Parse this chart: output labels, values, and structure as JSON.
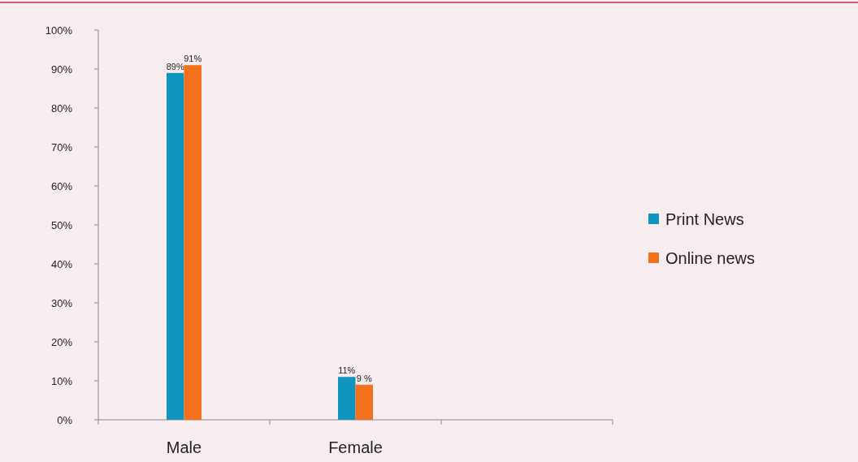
{
  "chart_data": {
    "type": "bar",
    "categories": [
      "Male",
      "Female",
      null
    ],
    "series": [
      {
        "name": "Print News",
        "color": "#0f95be",
        "values": [
          89,
          11,
          null
        ],
        "value_labels": [
          "89%",
          "11%",
          null
        ]
      },
      {
        "name": "Online news",
        "color": "#f3711c",
        "values": [
          91,
          9,
          null
        ],
        "value_labels": [
          "91%",
          "9 %",
          null
        ]
      }
    ],
    "ylim": [
      0,
      100
    ],
    "yticks": [
      {
        "value": 0,
        "label": "0%"
      },
      {
        "value": 10,
        "label": "10%"
      },
      {
        "value": 20,
        "label": "20%"
      },
      {
        "value": 30,
        "label": "30%"
      },
      {
        "value": 40,
        "label": "40%"
      },
      {
        "value": 50,
        "label": "50%"
      },
      {
        "value": 60,
        "label": "60%"
      },
      {
        "value": 70,
        "label": "70%"
      },
      {
        "value": 80,
        "label": "80%"
      },
      {
        "value": 90,
        "label": "90%"
      },
      {
        "value": 100,
        "label": "100%"
      }
    ],
    "grid": false,
    "legend": "right"
  }
}
